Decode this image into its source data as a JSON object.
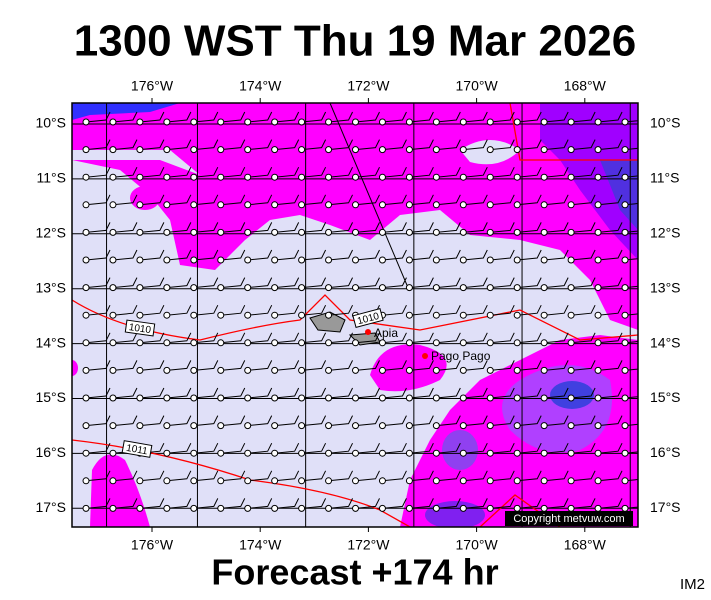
{
  "title": "1300 WST Thu 19 Mar 2026",
  "footer": "Forecast +174 hr",
  "corner_code": "IM2",
  "copyright": "Copyright metvuw.com",
  "lon_labels": [
    "176°W",
    "174°W",
    "172°W",
    "170°W",
    "168°W"
  ],
  "lat_labels": [
    "10°S",
    "11°S",
    "12°S",
    "13°S",
    "14°S",
    "15°S",
    "16°S",
    "17°S"
  ],
  "places": [
    "Apia",
    "Pago Pago"
  ],
  "isobar_labels": [
    "1010",
    "1010",
    "1011"
  ]
}
